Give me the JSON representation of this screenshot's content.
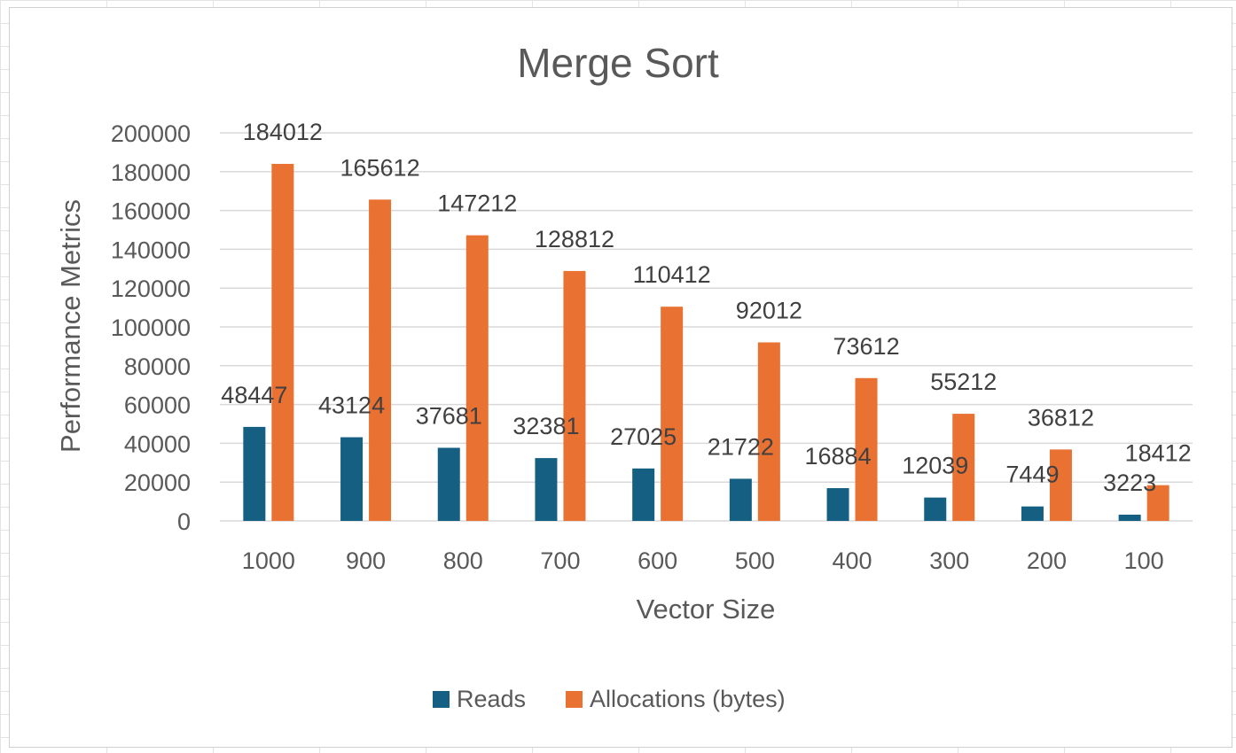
{
  "chart_data": {
    "type": "bar",
    "title": "Merge Sort",
    "xlabel": "Vector Size",
    "ylabel": "Performance Metrics",
    "categories": [
      "1000",
      "900",
      "800",
      "700",
      "600",
      "500",
      "400",
      "300",
      "200",
      "100"
    ],
    "series": [
      {
        "name": "Reads",
        "color": "#156082",
        "values": [
          48447,
          43124,
          37681,
          32381,
          27025,
          21722,
          16884,
          12039,
          7449,
          3223
        ]
      },
      {
        "name": "Allocations (bytes)",
        "color": "#E97132",
        "values": [
          184012,
          165612,
          147212,
          128812,
          110412,
          92012,
          73612,
          55212,
          36812,
          18412
        ]
      }
    ],
    "ylim": [
      0,
      200000
    ],
    "yticks": [
      0,
      20000,
      40000,
      60000,
      80000,
      100000,
      120000,
      140000,
      160000,
      180000,
      200000
    ],
    "grid": true,
    "legend_position": "bottom",
    "data_labels": true
  }
}
